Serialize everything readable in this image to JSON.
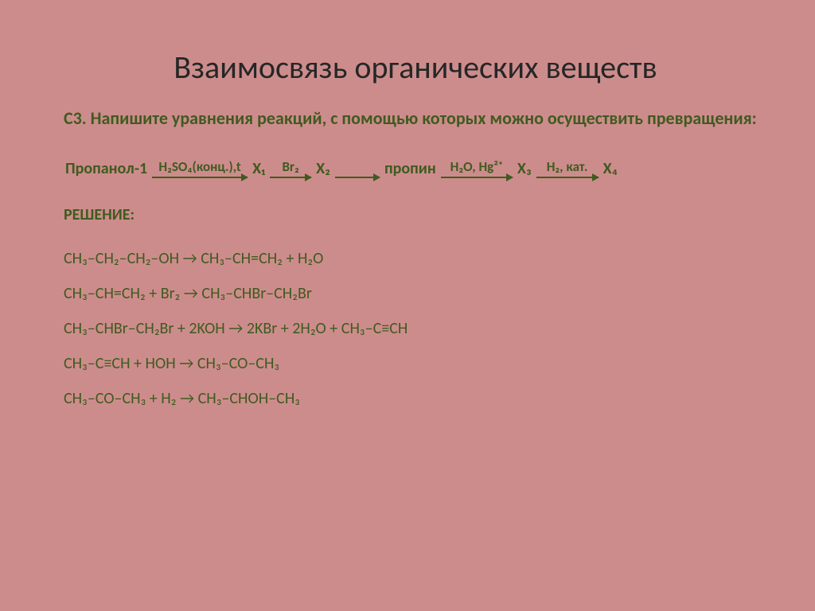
{
  "colors": {
    "background": "#cd8c8c",
    "title": "#262626",
    "accent": "#3f5b1f"
  },
  "title": "Взаимосвязь органических веществ",
  "instruction": "С3. Напишите уравнения реакций, с помощью которых можно осуществить превращения:",
  "scheme": {
    "nodes": [
      "Пропанол-1",
      "X₁",
      "X₂",
      "пропин",
      "X₃",
      "X₄"
    ],
    "conditions": [
      "H₂SO₄(конц.),t",
      "Br₂",
      "",
      "H₂O, Hg²⁺",
      "H₂, кат."
    ],
    "n0": "Пропанол-1",
    "c0": "H₂SO₄(конц.),t",
    "n1": "X₁",
    "c1": "Br₂",
    "n2": "X₂",
    "c2": "",
    "n3": "пропин",
    "c3": "H₂O, Hg²⁺",
    "n4": "X₃",
    "c4": "H₂, кат.",
    "n5": "X₄"
  },
  "solution_label": "РЕШЕНИЕ:",
  "equations": [
    "CH₃–CH₂–CH₂–OH → CH₃–CH=CH₂ + H₂O",
    "CH₃–CH=CH₂ + Br₂ → CH₃–CHBr–CH₂Br",
    "CH₃–CHBr–CH₂Br + 2KOH → 2KBr + 2H₂O + CH₃–C≡CH",
    "CH₃–C≡CH + HOH → CH₃–CO–CH₃",
    "CH₃–CO–CH₃ + H₂ → CH₃–CHOH–CH₃"
  ],
  "eq0": "CH₃–CH₂–CH₂–OH → CH₃–CH=CH₂ + H₂O",
  "eq1": "CH₃–CH=CH₂ + Br₂ → CH₃–CHBr–CH₂Br",
  "eq2": "CH₃–CHBr–CH₂Br + 2KOH → 2KBr + 2H₂O + CH₃–C≡CH",
  "eq3": "CH₃–C≡CH + HOH → CH₃–CO–CH₃",
  "eq4": "CH₃–CO–CH₃ + H₂ → CH₃–CHOH–CH₃",
  "typography": {
    "title_fontsize": 40,
    "body_fontsize": 20,
    "cond_fontsize": 17,
    "font_family": "Calibri"
  }
}
